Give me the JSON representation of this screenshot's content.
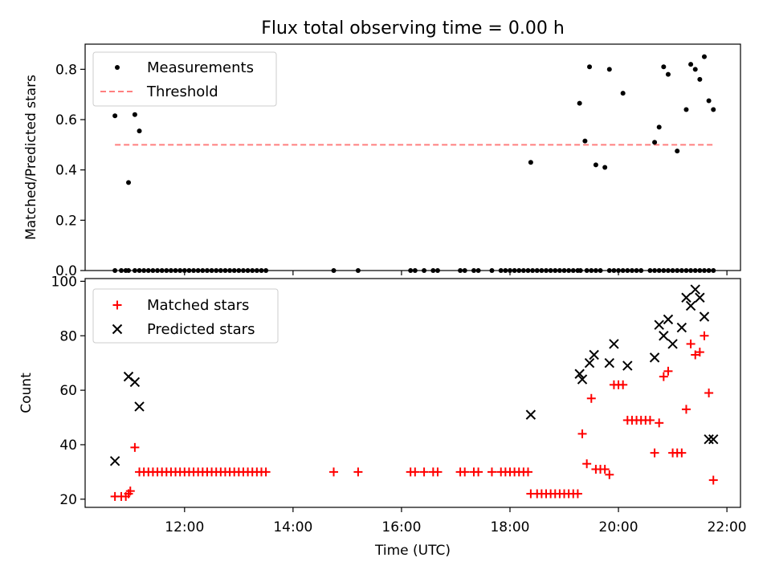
{
  "title": "Flux total observing time = 0.00 h",
  "colors": {
    "measurement": "#000000",
    "threshold": "#ff7f7f",
    "matched": "#ff0000",
    "predicted": "#000000"
  },
  "chart_data": [
    {
      "type": "scatter",
      "panel": "top",
      "title": "Flux total observing time = 0.00 h",
      "ylabel": "Matched/Predicted stars",
      "xlabel": "",
      "xlim": [
        "10:10",
        "22:15"
      ],
      "ylim": [
        0,
        0.9
      ],
      "yticks": [
        "0.0",
        "0.2",
        "0.4",
        "0.6",
        "0.8"
      ],
      "legend_position": "top-left",
      "legend": [
        "Measurements",
        "Threshold"
      ],
      "series": [
        {
          "name": "Measurements",
          "marker": "dot",
          "x": [
            "10:43",
            "10:50",
            "10:55",
            "10:58",
            "11:05",
            "11:10",
            "11:15",
            "11:20",
            "11:25",
            "11:30",
            "11:35",
            "11:40",
            "11:45",
            "11:50",
            "11:55",
            "12:00",
            "12:05",
            "12:10",
            "12:15",
            "12:20",
            "12:25",
            "12:30",
            "12:35",
            "12:40",
            "12:45",
            "12:50",
            "12:55",
            "13:00",
            "13:05",
            "13:10",
            "13:15",
            "13:20",
            "13:25",
            "13:30",
            "14:45",
            "15:12",
            "16:10",
            "16:15",
            "16:25",
            "16:35",
            "16:40",
            "17:05",
            "17:10",
            "17:20",
            "17:25",
            "17:40",
            "17:50",
            "17:55",
            "18:00",
            "18:05",
            "18:10",
            "18:15",
            "18:20",
            "18:25",
            "18:30",
            "18:35",
            "18:40",
            "18:45",
            "18:50",
            "18:55",
            "19:00",
            "19:05",
            "19:10",
            "19:15",
            "19:18",
            "19:25",
            "19:30",
            "19:35",
            "19:40",
            "19:50",
            "19:55",
            "20:00",
            "20:05",
            "20:10",
            "20:15",
            "20:20",
            "20:25",
            "20:35",
            "20:40",
            "20:45",
            "20:50",
            "20:55",
            "21:00",
            "21:05",
            "21:10",
            "21:15",
            "21:20",
            "21:25",
            "21:30",
            "21:35",
            "21:40",
            "21:45",
            "10:43",
            "10:58",
            "11:05",
            "11:10",
            "18:23",
            "19:17",
            "19:23",
            "19:28",
            "19:35",
            "19:45",
            "19:50",
            "20:05",
            "20:40",
            "20:45",
            "20:50",
            "20:55",
            "21:05",
            "21:15",
            "21:20",
            "21:25",
            "21:30",
            "21:35",
            "21:40",
            "21:45"
          ],
          "y": [
            0,
            0,
            0,
            0,
            0,
            0,
            0,
            0,
            0,
            0,
            0,
            0,
            0,
            0,
            0,
            0,
            0,
            0,
            0,
            0,
            0,
            0,
            0,
            0,
            0,
            0,
            0,
            0,
            0,
            0,
            0,
            0,
            0,
            0,
            0,
            0,
            0,
            0,
            0,
            0,
            0,
            0,
            0,
            0,
            0,
            0,
            0,
            0,
            0,
            0,
            0,
            0,
            0,
            0,
            0,
            0,
            0,
            0,
            0,
            0,
            0,
            0,
            0,
            0,
            0,
            0,
            0,
            0,
            0,
            0,
            0,
            0,
            0,
            0,
            0,
            0,
            0,
            0,
            0,
            0,
            0,
            0,
            0,
            0,
            0,
            0,
            0,
            0,
            0,
            0,
            0,
            0,
            0.615,
            0.35,
            0.62,
            0.555,
            0.43,
            0.665,
            0.515,
            0.81,
            0.42,
            0.41,
            0.8,
            0.705,
            0.51,
            0.57,
            0.81,
            0.78,
            0.475,
            0.64,
            0.82,
            0.8,
            0.76,
            0.85,
            0.675,
            0.64
          ]
        },
        {
          "name": "Threshold",
          "style": "dashed",
          "x": [
            "10:43",
            "21:45"
          ],
          "y": [
            0.5,
            0.5
          ]
        }
      ]
    },
    {
      "type": "scatter",
      "panel": "bottom",
      "xlabel": "Time (UTC)",
      "ylabel": "Count",
      "xlim": [
        "10:10",
        "22:15"
      ],
      "ylim": [
        17,
        101
      ],
      "xticks": [
        "12:00",
        "14:00",
        "16:00",
        "18:00",
        "20:00",
        "22:00"
      ],
      "yticks": [
        "20",
        "40",
        "60",
        "80",
        "100"
      ],
      "legend_position": "top-left",
      "legend": [
        "Matched stars",
        "Predicted stars"
      ],
      "series": [
        {
          "name": "Matched stars",
          "marker": "plus",
          "x": [
            "10:43",
            "10:50",
            "10:55",
            "10:58",
            "11:00",
            "11:05",
            "11:10",
            "11:15",
            "11:20",
            "11:25",
            "11:30",
            "11:35",
            "11:40",
            "11:45",
            "11:50",
            "11:55",
            "12:00",
            "12:05",
            "12:10",
            "12:15",
            "12:20",
            "12:25",
            "12:30",
            "12:35",
            "12:40",
            "12:45",
            "12:50",
            "12:55",
            "13:00",
            "13:05",
            "13:10",
            "13:15",
            "13:20",
            "13:25",
            "13:30",
            "14:45",
            "15:12",
            "16:10",
            "16:15",
            "16:25",
            "16:35",
            "16:40",
            "17:05",
            "17:10",
            "17:20",
            "17:25",
            "17:40",
            "17:50",
            "17:55",
            "18:00",
            "18:05",
            "18:10",
            "18:15",
            "18:20",
            "18:23",
            "18:30",
            "18:35",
            "18:40",
            "18:45",
            "18:50",
            "18:55",
            "19:00",
            "19:05",
            "19:10",
            "19:15",
            "19:20",
            "19:25",
            "19:30",
            "19:35",
            "19:40",
            "19:45",
            "19:50",
            "19:55",
            "20:00",
            "20:05",
            "20:10",
            "20:15",
            "20:20",
            "20:25",
            "20:30",
            "20:35",
            "20:40",
            "20:45",
            "20:50",
            "20:55",
            "21:00",
            "21:05",
            "21:10",
            "21:15",
            "21:20",
            "21:25",
            "21:30",
            "21:35",
            "21:40",
            "21:45"
          ],
          "y": [
            21,
            21,
            21,
            22,
            23,
            39,
            30,
            30,
            30,
            30,
            30,
            30,
            30,
            30,
            30,
            30,
            30,
            30,
            30,
            30,
            30,
            30,
            30,
            30,
            30,
            30,
            30,
            30,
            30,
            30,
            30,
            30,
            30,
            30,
            30,
            30,
            30,
            30,
            30,
            30,
            30,
            30,
            30,
            30,
            30,
            30,
            30,
            30,
            30,
            30,
            30,
            30,
            30,
            30,
            22,
            22,
            22,
            22,
            22,
            22,
            22,
            22,
            22,
            22,
            22,
            44,
            33,
            57,
            31,
            31,
            31,
            29,
            62,
            62,
            62,
            49,
            49,
            49,
            49,
            49,
            49,
            37,
            48,
            65,
            67,
            37,
            37,
            37,
            53,
            77,
            73,
            74,
            80,
            59,
            27
          ]
        },
        {
          "name": "Predicted stars",
          "marker": "x",
          "x": [
            "10:43",
            "10:58",
            "11:05",
            "11:10",
            "18:23",
            "19:17",
            "19:20",
            "19:28",
            "19:33",
            "19:50",
            "19:55",
            "20:10",
            "20:40",
            "20:45",
            "20:50",
            "20:55",
            "21:00",
            "21:10",
            "21:15",
            "21:20",
            "21:25",
            "21:30",
            "21:35",
            "21:40",
            "21:45"
          ],
          "y": [
            34,
            65,
            63,
            54,
            51,
            66,
            64,
            70,
            73,
            70,
            77,
            69,
            72,
            84,
            80,
            86,
            77,
            83,
            94,
            91,
            97,
            94,
            87,
            42,
            42
          ]
        }
      ]
    }
  ]
}
